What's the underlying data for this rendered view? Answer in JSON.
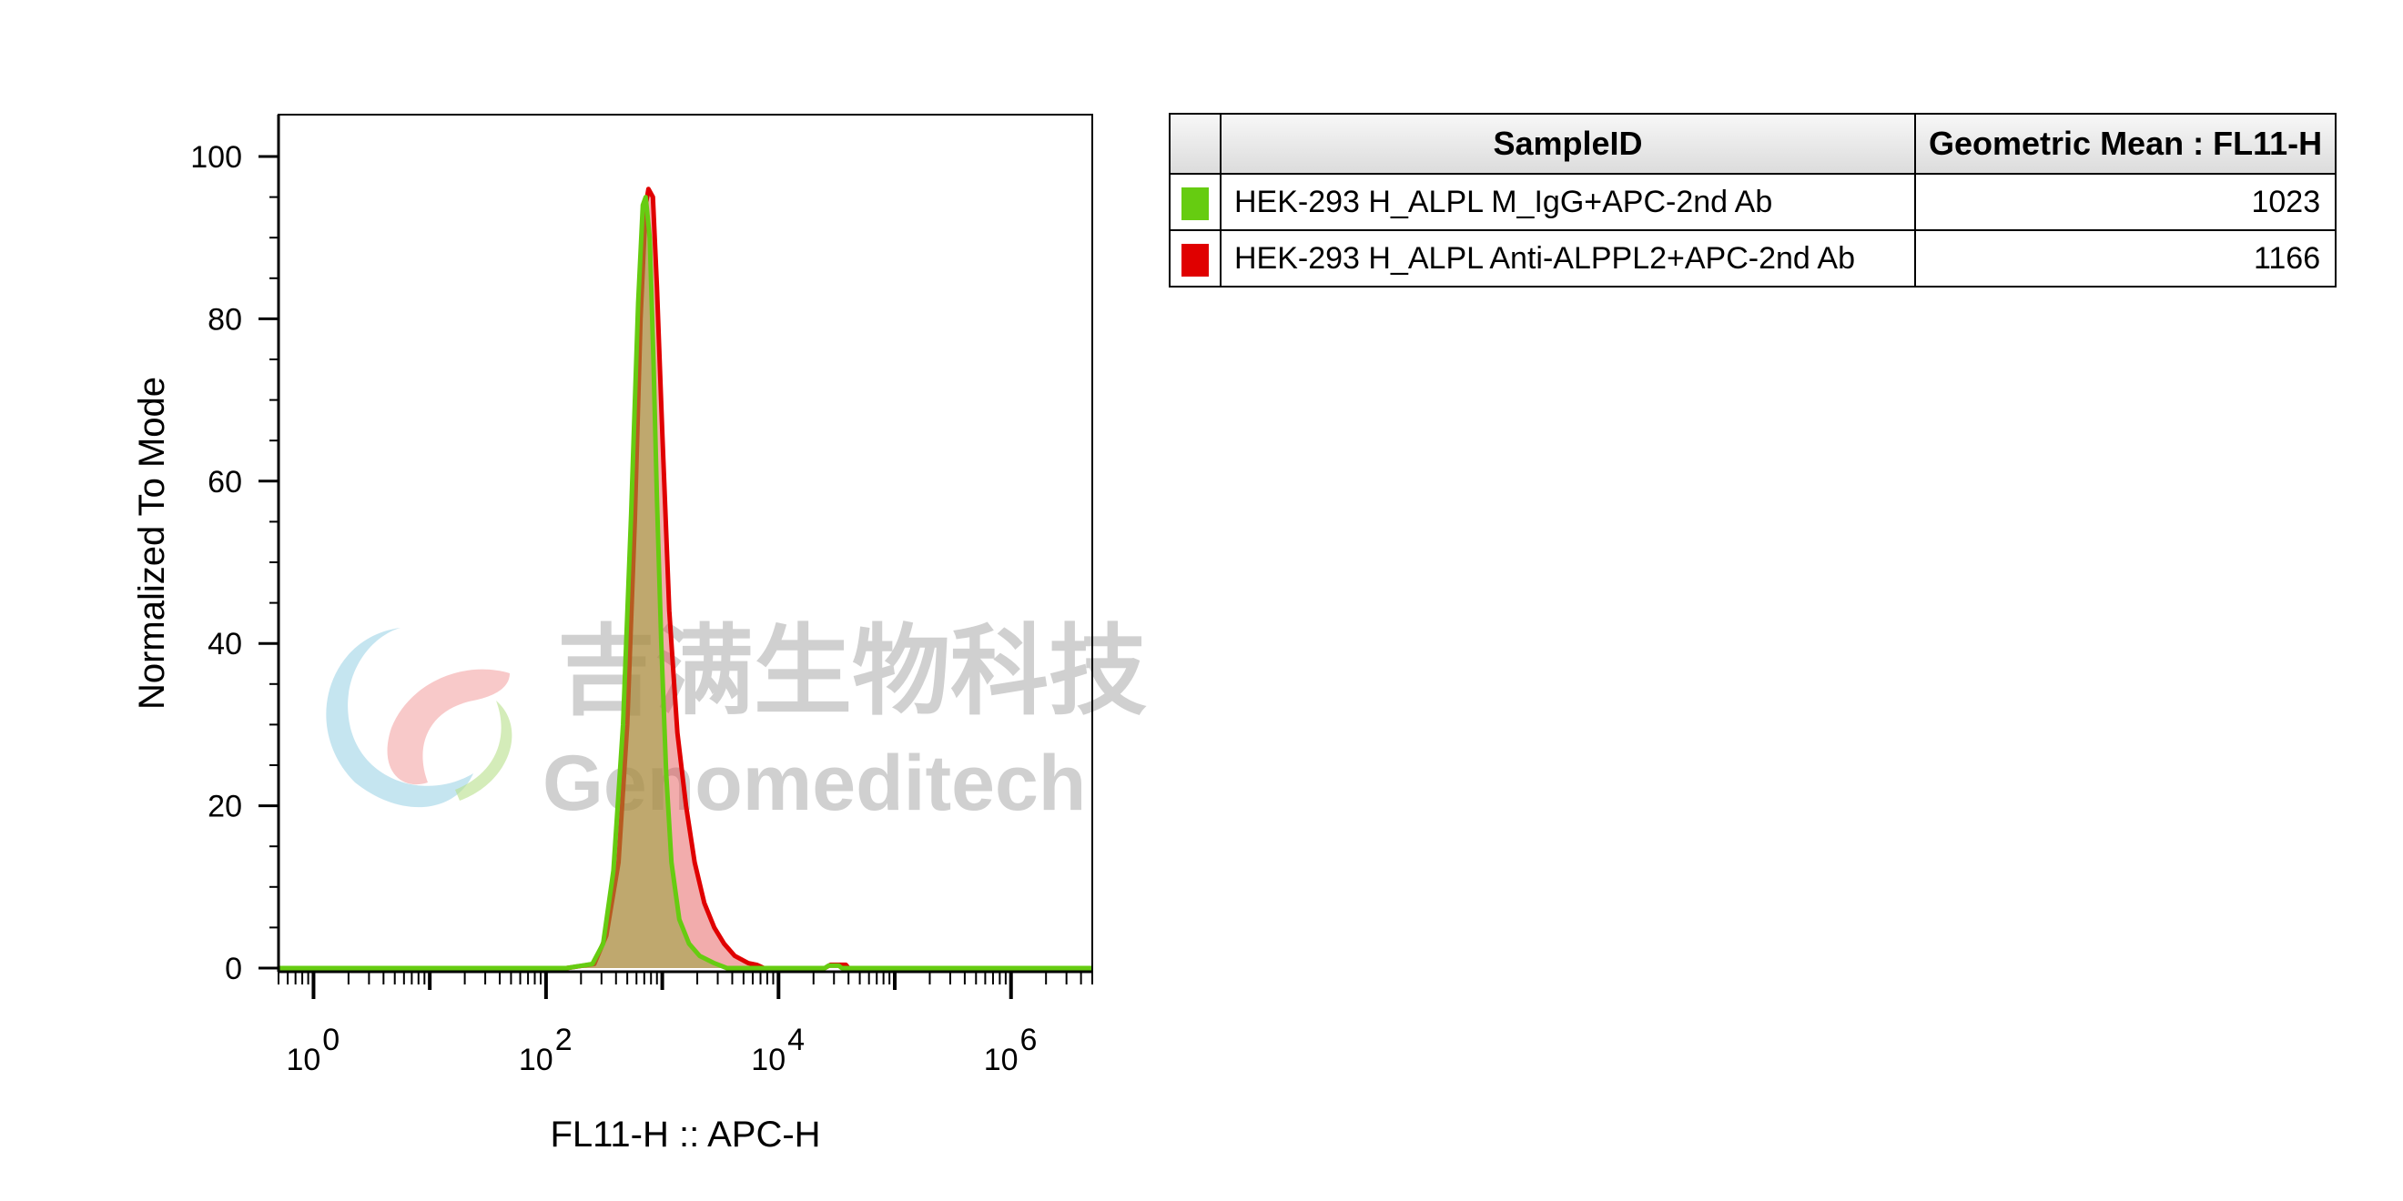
{
  "chart_data": {
    "type": "area",
    "xlabel": "FL11-H :: APC-H",
    "ylabel": "Normalized To Mode",
    "xscale": "log",
    "xlim": [
      0.5,
      5000000
    ],
    "ylim": [
      0,
      100
    ],
    "x_ticks": [
      {
        "base": "10",
        "exp": "0",
        "value": 1
      },
      {
        "base": "10",
        "exp": "2",
        "value": 100
      },
      {
        "base": "10",
        "exp": "4",
        "value": 10000
      },
      {
        "base": "10",
        "exp": "6",
        "value": 1000000
      }
    ],
    "y_ticks": [
      "0",
      "20",
      "40",
      "60",
      "80",
      "100"
    ],
    "grid": false,
    "series": [
      {
        "name": "HEK-293 H_ALPL Anti-ALPPL2+APC-2nd Ab",
        "color": "#e00000",
        "fill": "rgba(226,70,70,0.45)",
        "points": [
          [
            0.5,
            0
          ],
          [
            150,
            0
          ],
          [
            260,
            0.5
          ],
          [
            330,
            4
          ],
          [
            420,
            13
          ],
          [
            500,
            30
          ],
          [
            580,
            55
          ],
          [
            650,
            80
          ],
          [
            720,
            94
          ],
          [
            760,
            96
          ],
          [
            830,
            95
          ],
          [
            900,
            84
          ],
          [
            1000,
            66
          ],
          [
            1150,
            44
          ],
          [
            1350,
            29
          ],
          [
            1600,
            20
          ],
          [
            1900,
            13
          ],
          [
            2300,
            8
          ],
          [
            2800,
            5
          ],
          [
            3400,
            3
          ],
          [
            4200,
            1.5
          ],
          [
            5500,
            0.6
          ],
          [
            6500,
            0.4
          ],
          [
            7500,
            0
          ],
          [
            25000,
            0
          ],
          [
            28000,
            0.4
          ],
          [
            38000,
            0.4
          ],
          [
            40000,
            0
          ],
          [
            5000000,
            0
          ]
        ]
      },
      {
        "name": "HEK-293 H_ALPL M_IgG+APC-2nd Ab",
        "color": "#66cc11",
        "fill": "rgba(150,165,60,0.55)",
        "points": [
          [
            0.5,
            0
          ],
          [
            150,
            0
          ],
          [
            250,
            0.5
          ],
          [
            310,
            3
          ],
          [
            380,
            12
          ],
          [
            460,
            30
          ],
          [
            540,
            56
          ],
          [
            620,
            82
          ],
          [
            680,
            94
          ],
          [
            720,
            95
          ],
          [
            780,
            90
          ],
          [
            840,
            75
          ],
          [
            900,
            58
          ],
          [
            980,
            40
          ],
          [
            1080,
            24
          ],
          [
            1200,
            13
          ],
          [
            1400,
            6
          ],
          [
            1700,
            3
          ],
          [
            2100,
            1.5
          ],
          [
            2800,
            0.6
          ],
          [
            3600,
            0
          ],
          [
            25000,
            0
          ],
          [
            27000,
            0.3
          ],
          [
            33000,
            0.3
          ],
          [
            35000,
            0
          ],
          [
            5000000,
            0
          ]
        ]
      }
    ],
    "table": {
      "headers": [
        "SampleID",
        "Geometric Mean : FL11-H"
      ],
      "rows": [
        {
          "color": "#66cc11",
          "sample": "HEK-293 H_ALPL M_IgG+APC-2nd Ab",
          "value": "1023"
        },
        {
          "color": "#e00000",
          "sample": "HEK-293 H_ALPL Anti-ALPPL2+APC-2nd Ab",
          "value": "1166"
        }
      ]
    }
  },
  "watermark": {
    "cn": "吉满生物科技",
    "en": "Genomeditech"
  }
}
